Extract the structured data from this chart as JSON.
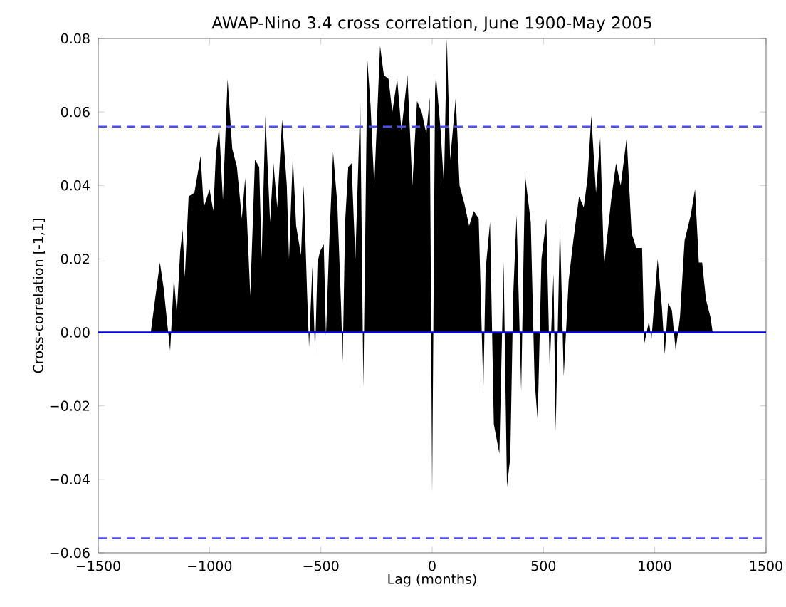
{
  "chart_data": {
    "type": "area",
    "title": "AWAP-Nino 3.4 cross correlation, June 1900-May 2005",
    "xlabel": "Lag (months)",
    "ylabel": "Cross-correlation [-1,1]",
    "xlim": [
      -1500,
      1500
    ],
    "ylim": [
      -0.06,
      0.08
    ],
    "xticks": [
      {
        "value": -1500,
        "label": "−1500"
      },
      {
        "value": -1000,
        "label": "−1000"
      },
      {
        "value": -500,
        "label": "−500"
      },
      0,
      500,
      1000,
      1500
    ],
    "yticks": [
      {
        "value": -0.06,
        "label": "−0.06"
      },
      {
        "value": -0.04,
        "label": "−0.04"
      },
      {
        "value": -0.02,
        "label": "−0.02"
      },
      {
        "value": 0,
        "label": "0.00"
      },
      0.02,
      0.04,
      0.06,
      0.08
    ],
    "ref_lines": [
      {
        "axis": "y",
        "value": 0,
        "color": "#0000ff",
        "line_style": "solid"
      },
      {
        "axis": "y",
        "value": 0.056,
        "color": "#4d4dff",
        "line_style": "dashed"
      },
      {
        "axis": "y",
        "value": -0.056,
        "color": "#4d4dff",
        "line_style": "dashed"
      }
    ],
    "x": [
      -1264,
      -1249,
      -1223,
      -1206,
      -1191,
      -1177,
      -1160,
      -1147,
      -1132,
      -1121,
      -1111,
      -1094,
      -1068,
      -1040,
      -1026,
      -1000,
      -983,
      -972,
      -957,
      -940,
      -919,
      -898,
      -877,
      -855,
      -840,
      -817,
      -796,
      -777,
      -766,
      -749,
      -728,
      -713,
      -696,
      -674,
      -653,
      -643,
      -626,
      -611,
      -589,
      -577,
      -562,
      -553,
      -538,
      -526,
      -515,
      -504,
      -487,
      -477,
      -462,
      -445,
      -426,
      -409,
      -402,
      -391,
      -377,
      -362,
      -345,
      -323,
      -309,
      -291,
      -277,
      -260,
      -234,
      -217,
      -196,
      -179,
      -157,
      -138,
      -111,
      -89,
      -68,
      -47,
      -26,
      -11,
      0,
      13,
      17,
      38,
      53,
      66,
      81,
      106,
      123,
      145,
      166,
      187,
      209,
      230,
      240,
      260,
      277,
      302,
      321,
      336,
      351,
      364,
      379,
      400,
      417,
      443,
      460,
      474,
      491,
      513,
      528,
      545,
      555,
      574,
      591,
      613,
      634,
      660,
      681,
      698,
      715,
      736,
      755,
      772,
      804,
      826,
      847,
      874,
      896,
      917,
      943,
      953,
      974,
      985,
      1013,
      1032,
      1045,
      1060,
      1077,
      1094,
      1113,
      1134,
      1162,
      1181,
      1198,
      1213,
      1230,
      1251,
      1260
    ],
    "series": [
      {
        "color": "#000000",
        "values": [
          0,
          0.007,
          0.019,
          0.012,
          0.003,
          -0.005,
          0.015,
          0.005,
          0.022,
          0.028,
          0.015,
          0.037,
          0.038,
          0.048,
          0.034,
          0.039,
          0.033,
          0.048,
          0.056,
          0.036,
          0.069,
          0.05,
          0.045,
          0.031,
          0.042,
          0.01,
          0.047,
          0.045,
          0.02,
          0.059,
          0.03,
          0.046,
          0.034,
          0.058,
          0.04,
          0.02,
          0.048,
          0.029,
          0.021,
          0.04,
          0.011,
          -0.004,
          0.018,
          -0.006,
          0.019,
          0.022,
          0.024,
          -0.001,
          0.025,
          0.049,
          0.035,
          0.007,
          -0.008,
          0.03,
          0.045,
          0.046,
          0.02,
          0.063,
          -0.015,
          0.074,
          0.062,
          0.04,
          0.078,
          0.07,
          0.069,
          0.06,
          0.069,
          0.055,
          0.07,
          0.04,
          0.063,
          0.06,
          0.054,
          0.064,
          -0.044,
          0.066,
          0.07,
          0.055,
          0.04,
          0.08,
          0.047,
          0.064,
          0.04,
          0.035,
          0.029,
          0.033,
          0.031,
          -0.016,
          0.017,
          0.03,
          -0.025,
          -0.033,
          0.019,
          -0.042,
          -0.034,
          0.01,
          0.032,
          -0.016,
          0.043,
          0.03,
          -0.013,
          -0.024,
          0.02,
          0.031,
          -0.01,
          0.016,
          -0.027,
          0.03,
          -0.012,
          0.014,
          0.025,
          0.037,
          0.034,
          0.042,
          0.059,
          0.038,
          0.053,
          0.018,
          0.036,
          0.046,
          0.04,
          0.053,
          0.027,
          0.023,
          0.023,
          -0.003,
          0.003,
          -0.002,
          0.02,
          0.007,
          -0.006,
          0.008,
          0.006,
          -0.005,
          0.004,
          0.025,
          0.032,
          0.039,
          0.019,
          0.019,
          0.009,
          0.004,
          0
        ]
      }
    ]
  }
}
